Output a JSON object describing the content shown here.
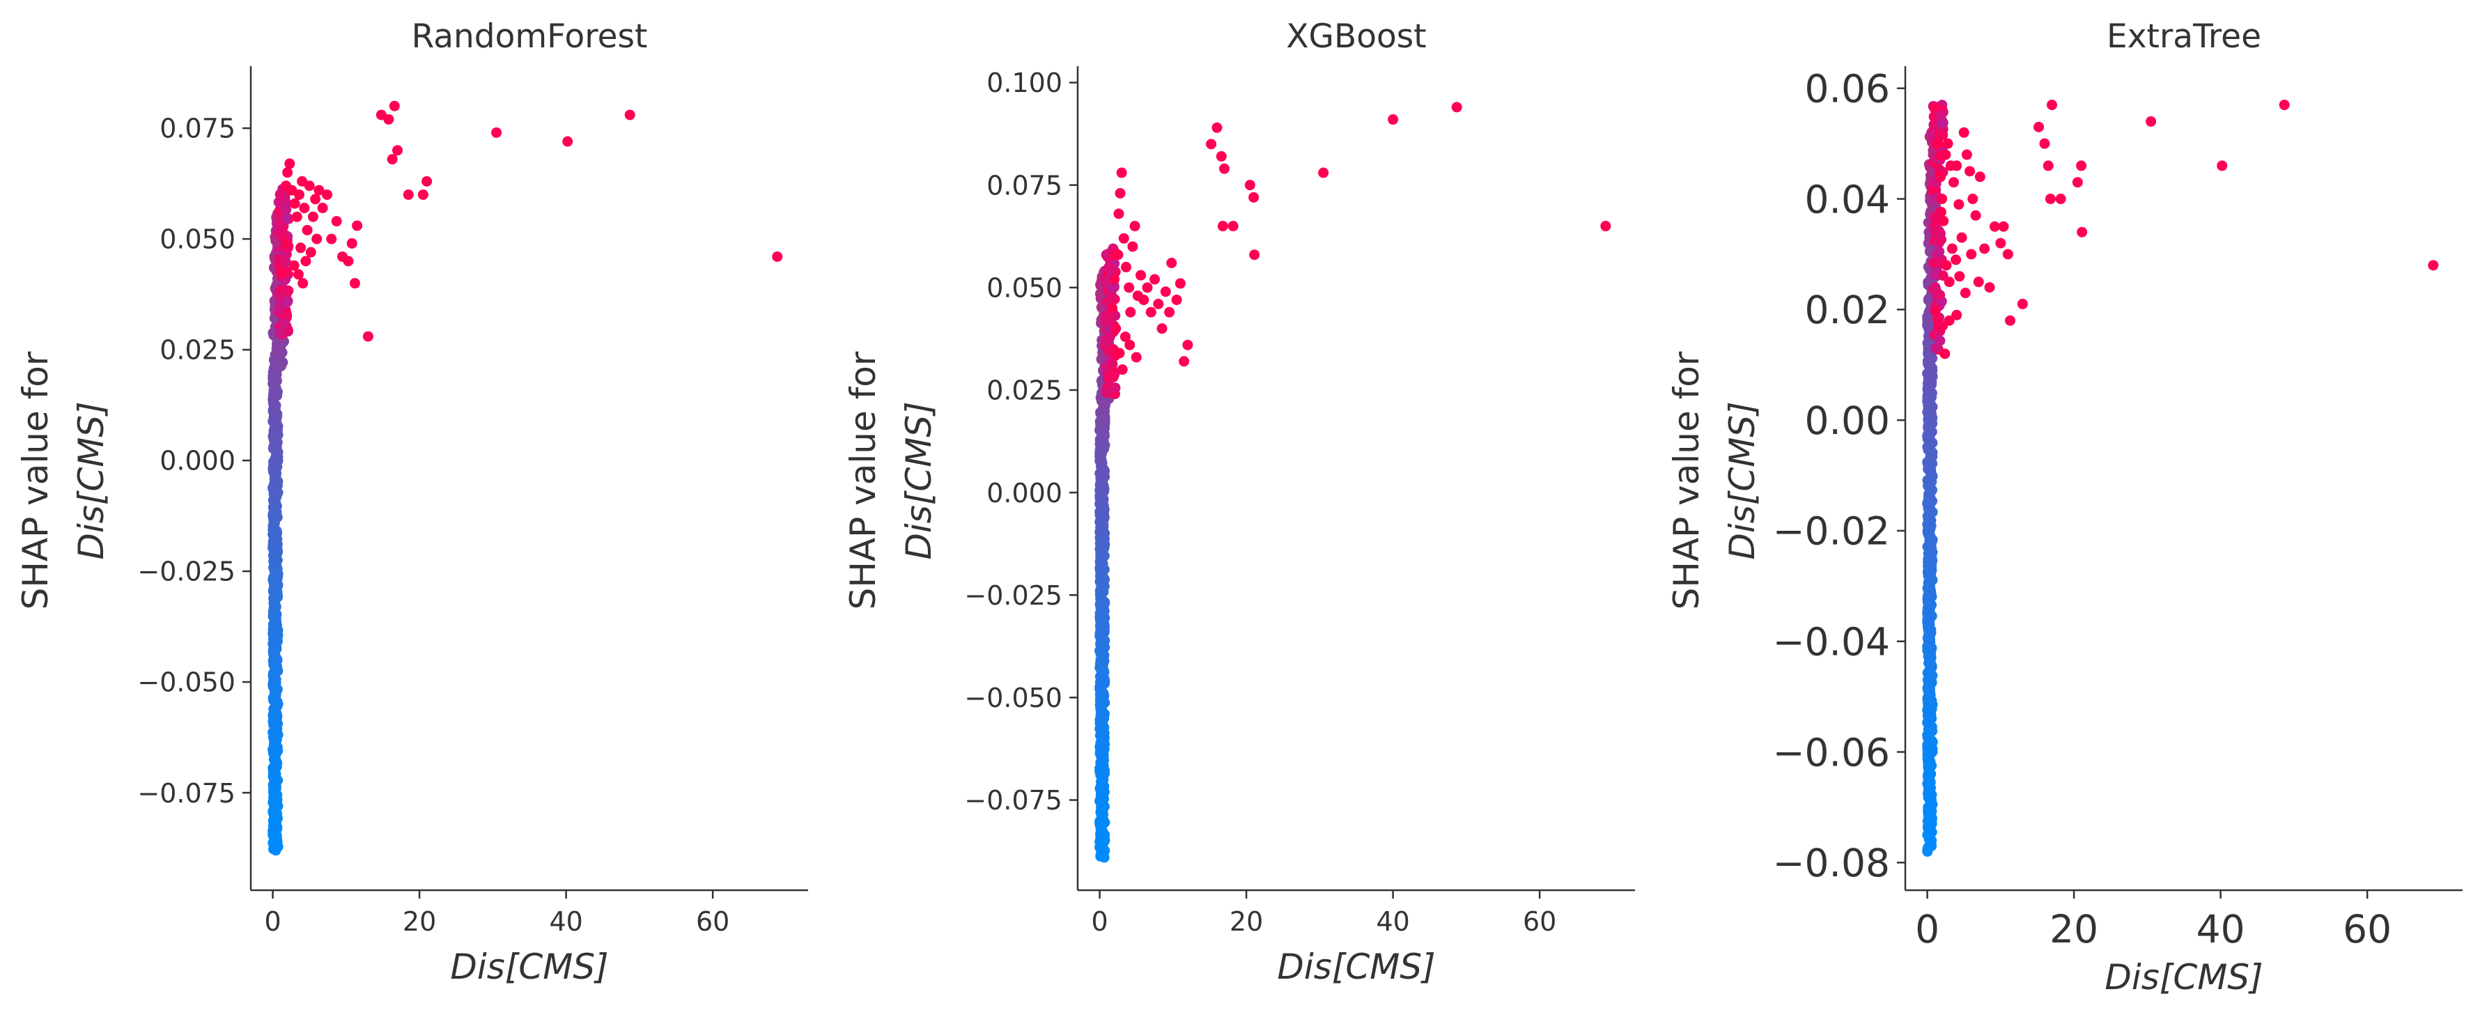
{
  "chart_data": [
    {
      "type": "scatter",
      "title": "RandomForest",
      "xlabel": "Dis[CMS]",
      "ylabel_line1": "SHAP value for",
      "ylabel_line2": "Dis[CMS]",
      "xlim": [
        -3,
        73
      ],
      "ylim": [
        -0.097,
        0.089
      ],
      "xticks": [
        0,
        20,
        40,
        60
      ],
      "xtick_labels": [
        "0",
        "20",
        "40",
        "60"
      ],
      "yticks": [
        -0.075,
        -0.05,
        -0.025,
        0.0,
        0.025,
        0.05,
        0.075
      ],
      "ytick_labels": [
        "−0.075",
        "−0.050",
        "−0.025",
        "0.000",
        "0.025",
        "0.050",
        "0.075"
      ],
      "tick_font_size": 38,
      "color_low": "#008afb",
      "color_high": "#ff0052",
      "dense_range": [
        -0.088,
        0.056
      ],
      "dense_cutoff": 0.028,
      "outliers": [
        [
          1.8,
          0.062
        ],
        [
          2.0,
          0.065
        ],
        [
          2.3,
          0.067
        ],
        [
          2.6,
          0.061
        ],
        [
          3.0,
          0.058
        ],
        [
          3.3,
          0.055
        ],
        [
          3.6,
          0.06
        ],
        [
          4.0,
          0.063
        ],
        [
          4.3,
          0.057
        ],
        [
          4.7,
          0.052
        ],
        [
          5.0,
          0.062
        ],
        [
          5.5,
          0.055
        ],
        [
          5.8,
          0.059
        ],
        [
          6.3,
          0.061
        ],
        [
          6.8,
          0.057
        ],
        [
          7.4,
          0.06
        ],
        [
          3.8,
          0.048
        ],
        [
          4.5,
          0.045
        ],
        [
          5.2,
          0.047
        ],
        [
          6.0,
          0.05
        ],
        [
          2.9,
          0.044
        ],
        [
          3.5,
          0.042
        ],
        [
          4.1,
          0.04
        ],
        [
          8.0,
          0.05
        ],
        [
          8.7,
          0.054
        ],
        [
          9.5,
          0.046
        ],
        [
          10.3,
          0.045
        ],
        [
          10.8,
          0.049
        ],
        [
          11.2,
          0.04
        ],
        [
          11.5,
          0.053
        ],
        [
          13.0,
          0.028
        ],
        [
          14.8,
          0.078
        ],
        [
          15.8,
          0.077
        ],
        [
          16.3,
          0.068
        ],
        [
          16.6,
          0.08
        ],
        [
          17.0,
          0.07
        ],
        [
          18.5,
          0.06
        ],
        [
          20.5,
          0.06
        ],
        [
          21.0,
          0.063
        ],
        [
          30.5,
          0.074
        ],
        [
          40.2,
          0.072
        ],
        [
          48.7,
          0.078
        ],
        [
          68.8,
          0.046
        ]
      ]
    },
    {
      "type": "scatter",
      "title": "XGBoost",
      "xlabel": "Dis[CMS]",
      "ylabel_line1": "SHAP value for",
      "ylabel_line2": "Dis[CMS]",
      "xlim": [
        -3,
        73
      ],
      "ylim": [
        -0.097,
        0.104
      ],
      "xticks": [
        0,
        20,
        40,
        60
      ],
      "xtick_labels": [
        "0",
        "20",
        "40",
        "60"
      ],
      "yticks": [
        -0.075,
        -0.05,
        -0.025,
        0.0,
        0.025,
        0.05,
        0.075,
        0.1
      ],
      "ytick_labels": [
        "−0.075",
        "−0.050",
        "−0.025",
        "0.000",
        "0.025",
        "0.050",
        "0.075",
        "0.100"
      ],
      "tick_font_size": 38,
      "color_low": "#008afb",
      "color_high": "#ff0052",
      "dense_range": [
        -0.089,
        0.054
      ],
      "dense_cutoff": 0.024,
      "outliers": [
        [
          1.7,
          0.045
        ],
        [
          2.0,
          0.052
        ],
        [
          2.2,
          0.04
        ],
        [
          2.5,
          0.058
        ],
        [
          2.8,
          0.073
        ],
        [
          3.0,
          0.078
        ],
        [
          2.6,
          0.068
        ],
        [
          3.3,
          0.062
        ],
        [
          3.6,
          0.055
        ],
        [
          4.0,
          0.05
        ],
        [
          4.2,
          0.044
        ],
        [
          4.5,
          0.06
        ],
        [
          4.8,
          0.065
        ],
        [
          5.2,
          0.048
        ],
        [
          5.6,
          0.053
        ],
        [
          6.0,
          0.047
        ],
        [
          6.5,
          0.05
        ],
        [
          7.0,
          0.044
        ],
        [
          7.5,
          0.052
        ],
        [
          8.0,
          0.046
        ],
        [
          8.5,
          0.04
        ],
        [
          9.0,
          0.049
        ],
        [
          9.5,
          0.044
        ],
        [
          9.8,
          0.056
        ],
        [
          10.5,
          0.047
        ],
        [
          11.0,
          0.051
        ],
        [
          11.5,
          0.032
        ],
        [
          12.0,
          0.036
        ],
        [
          3.1,
          0.03
        ],
        [
          2.7,
          0.034
        ],
        [
          3.5,
          0.038
        ],
        [
          4.1,
          0.036
        ],
        [
          5.0,
          0.033
        ],
        [
          15.2,
          0.085
        ],
        [
          16.0,
          0.089
        ],
        [
          16.6,
          0.082
        ],
        [
          16.8,
          0.065
        ],
        [
          17.0,
          0.079
        ],
        [
          18.2,
          0.065
        ],
        [
          20.5,
          0.075
        ],
        [
          21.0,
          0.072
        ],
        [
          21.1,
          0.058
        ],
        [
          30.5,
          0.078
        ],
        [
          40.0,
          0.091
        ],
        [
          48.7,
          0.094
        ],
        [
          69.0,
          0.065
        ]
      ]
    },
    {
      "type": "scatter",
      "title": "ExtraTree",
      "xlabel": "Dis[CMS]",
      "ylabel_line1": "SHAP value for",
      "ylabel_line2": "Dis[CMS]",
      "xlim": [
        -3,
        73
      ],
      "ylim": [
        -0.085,
        0.064
      ],
      "xticks": [
        0,
        20,
        40,
        60
      ],
      "xtick_labels": [
        "0",
        "20",
        "40",
        "60"
      ],
      "yticks": [
        -0.08,
        -0.06,
        -0.04,
        -0.02,
        0.0,
        0.02,
        0.04,
        0.06
      ],
      "ytick_labels": [
        "−0.08",
        "−0.06",
        "−0.04",
        "−0.02",
        "0.00",
        "0.02",
        "0.04",
        "0.06"
      ],
      "tick_font_size": 55,
      "color_low": "#008afb",
      "color_high": "#ff0052",
      "dense_range": [
        -0.078,
        0.052
      ],
      "dense_cutoff": 0.012,
      "outliers": [
        [
          1.5,
          0.05
        ],
        [
          1.8,
          0.044
        ],
        [
          2.0,
          0.04
        ],
        [
          2.2,
          0.036
        ],
        [
          2.5,
          0.048
        ],
        [
          2.8,
          0.05
        ],
        [
          3.2,
          0.046
        ],
        [
          3.6,
          0.043
        ],
        [
          4.0,
          0.046
        ],
        [
          4.3,
          0.039
        ],
        [
          4.7,
          0.033
        ],
        [
          5.0,
          0.052
        ],
        [
          5.4,
          0.048
        ],
        [
          5.8,
          0.045
        ],
        [
          6.2,
          0.04
        ],
        [
          6.6,
          0.037
        ],
        [
          7.2,
          0.044
        ],
        [
          2.6,
          0.028
        ],
        [
          3.0,
          0.025
        ],
        [
          3.4,
          0.031
        ],
        [
          3.9,
          0.029
        ],
        [
          4.4,
          0.026
        ],
        [
          5.2,
          0.023
        ],
        [
          6.0,
          0.03
        ],
        [
          7.0,
          0.025
        ],
        [
          7.8,
          0.031
        ],
        [
          8.5,
          0.024
        ],
        [
          9.2,
          0.035
        ],
        [
          10.0,
          0.032
        ],
        [
          10.4,
          0.035
        ],
        [
          11.0,
          0.03
        ],
        [
          11.3,
          0.018
        ],
        [
          13.0,
          0.021
        ],
        [
          3.0,
          0.018
        ],
        [
          4.0,
          0.019
        ],
        [
          2.4,
          0.012
        ],
        [
          15.2,
          0.053
        ],
        [
          16.0,
          0.05
        ],
        [
          16.5,
          0.046
        ],
        [
          16.8,
          0.04
        ],
        [
          17.0,
          0.057
        ],
        [
          18.2,
          0.04
        ],
        [
          20.5,
          0.043
        ],
        [
          21.0,
          0.046
        ],
        [
          21.1,
          0.034
        ],
        [
          30.5,
          0.054
        ],
        [
          40.2,
          0.046
        ],
        [
          48.7,
          0.057
        ],
        [
          69.0,
          0.028
        ]
      ]
    }
  ]
}
